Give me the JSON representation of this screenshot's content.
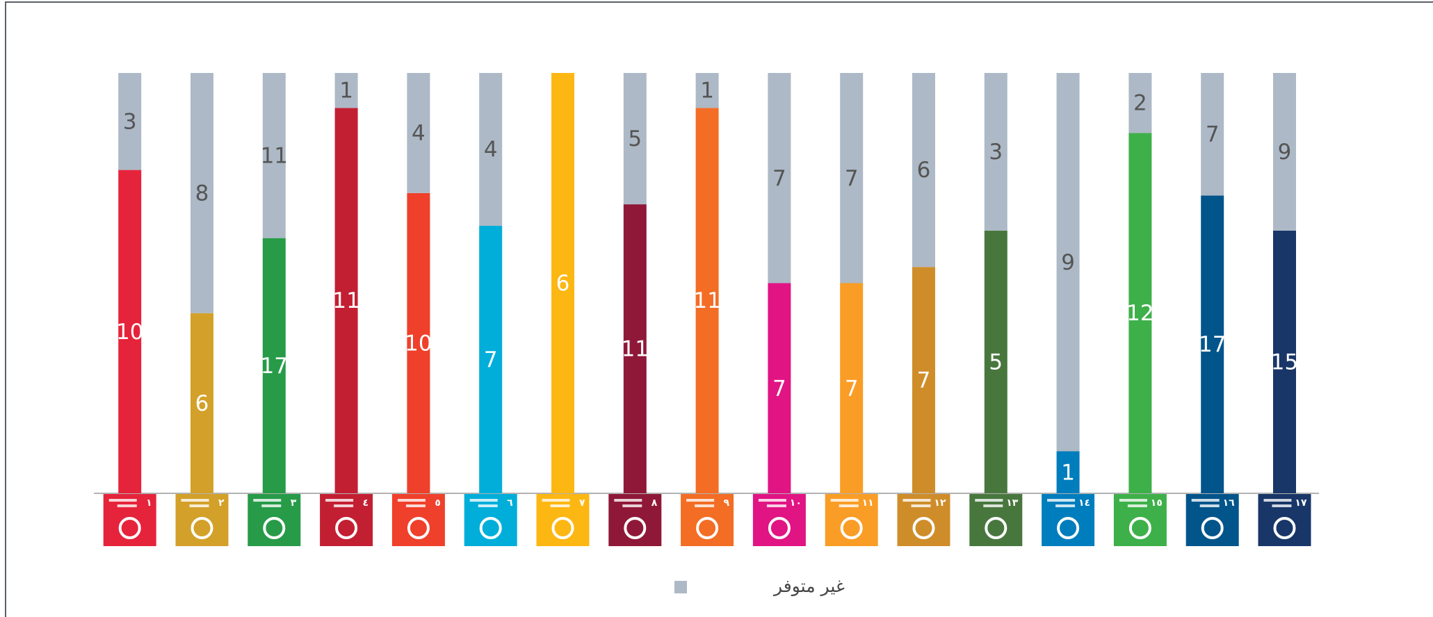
{
  "chart_data": {
    "type": "bar",
    "stacking": "percent",
    "categories": [
      "١",
      "٢",
      "٣",
      "٤",
      "٥",
      "٦",
      "٧",
      "٨",
      "٩",
      "١٠",
      "١١",
      "١٢",
      "١٣",
      "١٤",
      "١٥",
      "١٦",
      "١٧"
    ],
    "series": [
      {
        "colors": [
          "#e5243b",
          "#d3a029",
          "#279b48",
          "#c31f33",
          "#ef402b",
          "#00aed9",
          "#fdb713",
          "#8f1838",
          "#f36d25",
          "#e11484",
          "#f99d26",
          "#cf8d2a",
          "#48773e",
          "#007dbc",
          "#3eb049",
          "#02558b",
          "#183668"
        ],
        "values": [
          10,
          6,
          17,
          11,
          10,
          7,
          6,
          11,
          11,
          7,
          7,
          7,
          5,
          1,
          12,
          17,
          15
        ]
      },
      {
        "name": "غير متوفر",
        "color": "#adb9c6",
        "values": [
          3,
          8,
          11,
          1,
          4,
          4,
          0,
          5,
          1,
          7,
          7,
          6,
          3,
          9,
          2,
          7,
          9
        ]
      }
    ],
    "legend": "bottom"
  }
}
